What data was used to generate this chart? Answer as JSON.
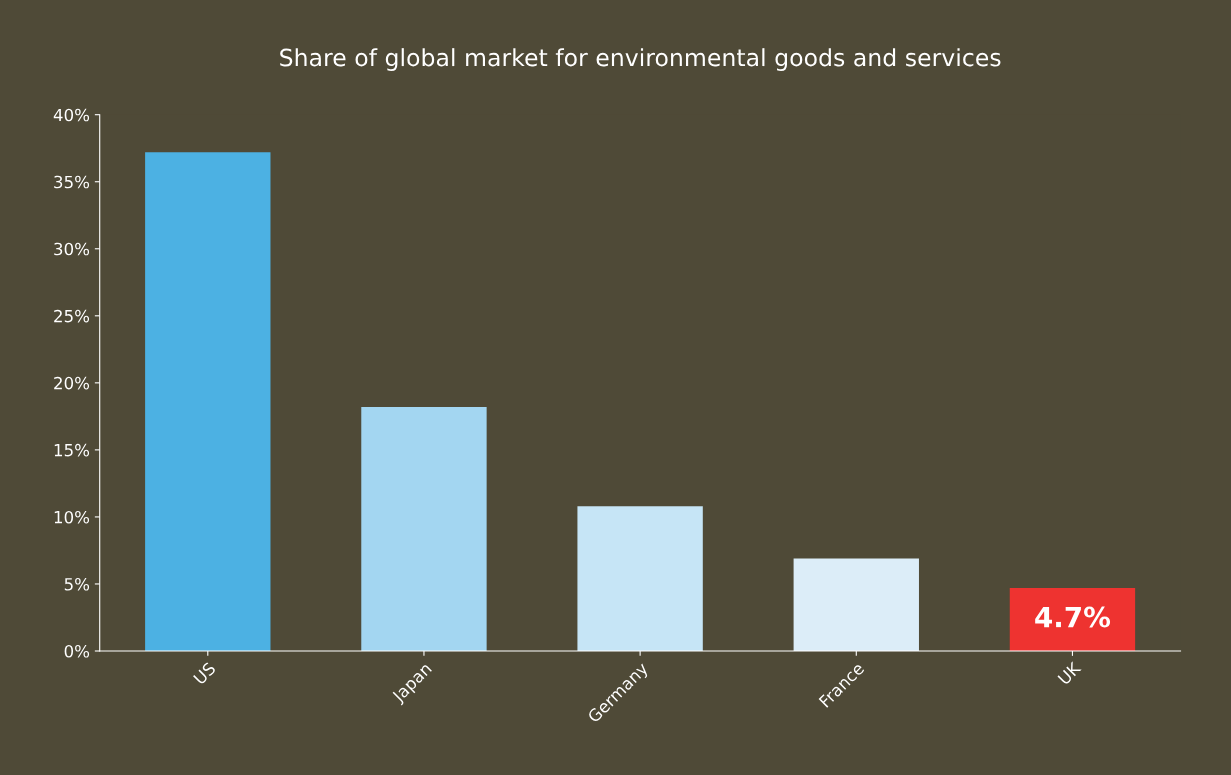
{
  "chart_data": {
    "type": "bar",
    "title": "Share of global market for environmental goods and services",
    "categories": [
      "US",
      "Japan",
      "Germany",
      "France",
      "UK"
    ],
    "values": [
      37.2,
      18.2,
      10.8,
      6.9,
      4.7
    ],
    "colors": [
      "#4cb1e3",
      "#a3d6f1",
      "#c6e5f6",
      "#dcedf8",
      "#ee3330"
    ],
    "value_labels": [
      null,
      null,
      null,
      null,
      "4.7%"
    ],
    "ylim": [
      0,
      40
    ],
    "yticks": [
      {
        "value": 0,
        "label": "0%"
      },
      {
        "value": 5,
        "label": "5%"
      },
      {
        "value": 10,
        "label": "10%"
      },
      {
        "value": 15,
        "label": "15%"
      },
      {
        "value": 20,
        "label": "20%"
      },
      {
        "value": 25,
        "label": "25%"
      },
      {
        "value": 30,
        "label": "30%"
      },
      {
        "value": 35,
        "label": "35%"
      },
      {
        "value": 40,
        "label": "40%"
      }
    ],
    "grid": false
  }
}
